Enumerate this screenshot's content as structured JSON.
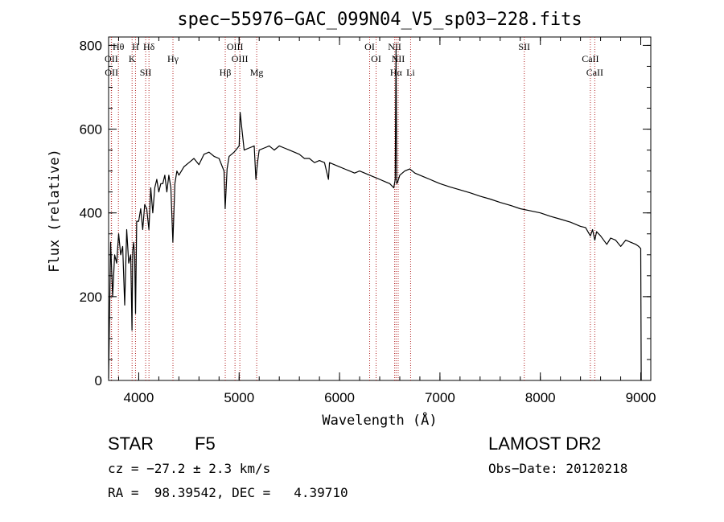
{
  "chart_data": {
    "type": "line",
    "title": "spec−55976−GAC_099N04_V5_sp03−228.fits",
    "xlabel": "Wavelength (Å)",
    "ylabel": "Flux (relative)",
    "xlim": [
      3700,
      9100
    ],
    "ylim": [
      0,
      820
    ],
    "xticks": [
      4000,
      5000,
      6000,
      7000,
      8000,
      9000
    ],
    "yticks": [
      0,
      200,
      400,
      600,
      800
    ],
    "grid": false,
    "line_color": "#000000",
    "marker_line_color": "#b22222",
    "spectrum": {
      "x": [
        3700,
        3720,
        3740,
        3760,
        3780,
        3800,
        3820,
        3840,
        3860,
        3880,
        3900,
        3920,
        3933,
        3940,
        3950,
        3960,
        3968,
        3980,
        4000,
        4020,
        4040,
        4060,
        4080,
        4101,
        4120,
        4140,
        4160,
        4180,
        4200,
        4220,
        4240,
        4260,
        4280,
        4300,
        4320,
        4340,
        4360,
        4380,
        4400,
        4450,
        4500,
        4550,
        4600,
        4650,
        4700,
        4750,
        4800,
        4850,
        4861,
        4880,
        4900,
        4950,
        5000,
        5010,
        5050,
        5100,
        5150,
        5167,
        5183,
        5200,
        5250,
        5300,
        5350,
        5400,
        5450,
        5500,
        5550,
        5600,
        5650,
        5700,
        5750,
        5800,
        5850,
        5890,
        5900,
        5950,
        6000,
        6050,
        6100,
        6150,
        6200,
        6250,
        6300,
        6350,
        6400,
        6450,
        6500,
        6540,
        6555,
        6563,
        6570,
        6580,
        6600,
        6650,
        6700,
        6750,
        6800,
        6850,
        6900,
        6950,
        7000,
        7100,
        7200,
        7300,
        7400,
        7500,
        7600,
        7700,
        7800,
        7900,
        8000,
        8100,
        8200,
        8300,
        8400,
        8450,
        8498,
        8520,
        8542,
        8560,
        8600,
        8662,
        8700,
        8750,
        8800,
        8850,
        8900,
        8950,
        8980,
        9000,
        9005
      ],
      "y": [
        5,
        330,
        200,
        300,
        280,
        350,
        300,
        320,
        180,
        360,
        280,
        300,
        120,
        310,
        330,
        290,
        160,
        380,
        380,
        410,
        360,
        420,
        410,
        360,
        460,
        400,
        460,
        480,
        450,
        470,
        470,
        490,
        450,
        490,
        460,
        330,
        470,
        500,
        490,
        510,
        520,
        530,
        515,
        540,
        545,
        535,
        530,
        500,
        410,
        505,
        535,
        545,
        560,
        640,
        550,
        555,
        560,
        480,
        520,
        550,
        555,
        560,
        550,
        560,
        555,
        550,
        545,
        540,
        530,
        530,
        520,
        525,
        520,
        480,
        520,
        515,
        510,
        505,
        500,
        495,
        500,
        495,
        490,
        485,
        480,
        475,
        470,
        460,
        480,
        790,
        470,
        475,
        490,
        500,
        505,
        495,
        490,
        485,
        480,
        475,
        470,
        462,
        455,
        448,
        440,
        433,
        425,
        418,
        410,
        405,
        400,
        392,
        385,
        378,
        368,
        365,
        345,
        360,
        335,
        355,
        345,
        325,
        340,
        335,
        320,
        335,
        330,
        325,
        320,
        315,
        0
      ]
    },
    "lines": [
      {
        "name": "Hθ",
        "x": 3798
      },
      {
        "name": "OII",
        "x": 3727
      },
      {
        "name": "OII",
        "x": 3729
      },
      {
        "name": "H",
        "x": 3968
      },
      {
        "name": "K",
        "x": 3934
      },
      {
        "name": "SII",
        "x": 4069
      },
      {
        "name": "Hδ",
        "x": 4102
      },
      {
        "name": "Hγ",
        "x": 4341
      },
      {
        "name": "Hβ",
        "x": 4862
      },
      {
        "name": "OIII",
        "x": 4959
      },
      {
        "name": "OIII",
        "x": 5007
      },
      {
        "name": "Mg",
        "x": 5175
      },
      {
        "name": "OI",
        "x": 6300
      },
      {
        "name": "OI",
        "x": 6364
      },
      {
        "name": "Hα",
        "x": 6563
      },
      {
        "name": "NII",
        "x": 6549
      },
      {
        "name": "NII",
        "x": 6584
      },
      {
        "name": "Li",
        "x": 6708
      },
      {
        "name": "SII",
        "x": 7840
      },
      {
        "name": "CaII",
        "x": 8498
      },
      {
        "name": "CaII",
        "x": 8542
      }
    ]
  },
  "info": {
    "class": "STAR",
    "subclass": "F5",
    "survey": "LAMOST DR2",
    "cz": "cz = −27.2 ± 2.3 km/s",
    "obs_date": "Obs−Date: 20120218",
    "coords": "RA =  98.39542, DEC =   4.39710"
  }
}
